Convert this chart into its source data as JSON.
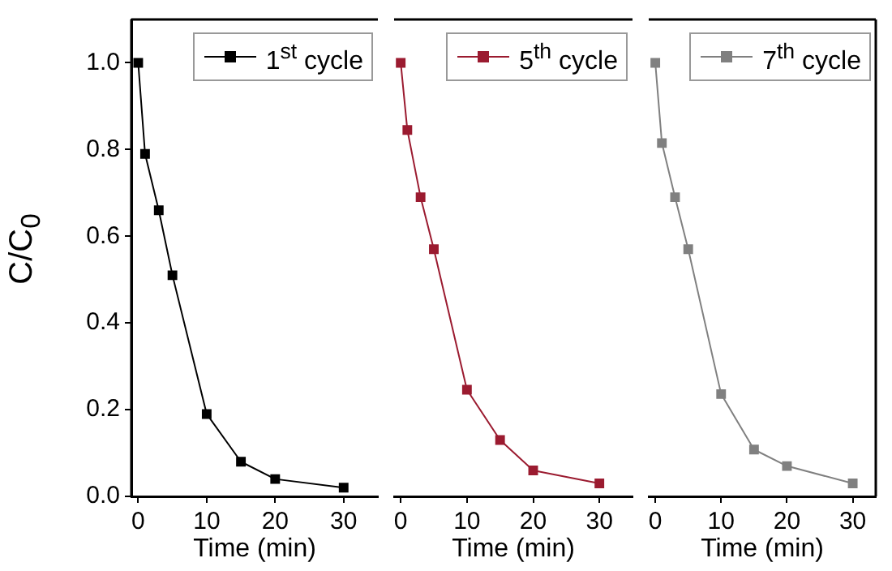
{
  "chart_data": [
    {
      "type": "line",
      "x": [
        0,
        1,
        3,
        5,
        10,
        15,
        20,
        30
      ],
      "xlabel": "Time (min)",
      "ylabel": "C/C$_{0}$",
      "xlim": [
        -1,
        35
      ],
      "xticks": [
        0,
        10,
        20,
        30
      ],
      "ylim": [
        0,
        1.1
      ],
      "yticks": [
        {
          "value": 0,
          "label": "0.0"
        },
        0.2,
        0.4,
        0.6,
        0.8,
        {
          "value": 1,
          "label": "1.0"
        }
      ],
      "marker": "square",
      "legend": "top right",
      "series": [
        {
          "name": "1$^{st}$ cycle",
          "color": "#000000",
          "values": [
            1.0,
            0.79,
            0.66,
            0.51,
            0.19,
            0.08,
            0.04,
            0.02
          ]
        }
      ]
    },
    {
      "type": "line",
      "x": [
        0,
        1,
        3,
        5,
        10,
        15,
        20,
        30
      ],
      "xlabel": "Time (min)",
      "xlim": [
        -1,
        35
      ],
      "xticks": [
        0,
        10,
        20,
        30
      ],
      "ylim": [
        0,
        1.1
      ],
      "yticks": [
        0,
        0.2,
        0.4,
        0.6,
        0.8,
        1.0
      ],
      "marker": "square",
      "legend": "top right",
      "tick_labels": "x",
      "series": [
        {
          "name": "5$^{th}$ cycle",
          "color": "#9b1b30",
          "values": [
            1.0,
            0.845,
            0.69,
            0.57,
            0.246,
            0.13,
            0.06,
            0.03
          ]
        }
      ]
    },
    {
      "type": "line",
      "x": [
        0,
        1,
        3,
        5,
        10,
        15,
        20,
        30
      ],
      "xlabel": "Time (min)",
      "xlim": [
        -1,
        33.5
      ],
      "xticks": [
        0,
        10,
        20,
        30
      ],
      "ylim": [
        0,
        1.1
      ],
      "yticks": [
        0,
        0.2,
        0.4,
        0.6,
        0.8,
        1.0
      ],
      "marker": "square",
      "legend": "top right",
      "tick_labels": "x",
      "series": [
        {
          "name": "7$^{th}$ cycle",
          "color": "#808080",
          "values": [
            1.0,
            0.815,
            0.69,
            0.57,
            0.236,
            0.108,
            0.07,
            0.03
          ]
        }
      ]
    }
  ]
}
